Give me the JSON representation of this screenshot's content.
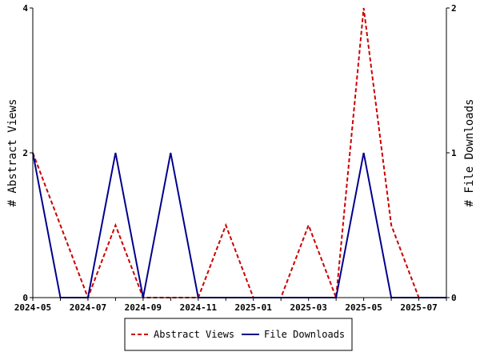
{
  "chart_data": {
    "type": "line",
    "x": [
      "2024-05",
      "2024-06",
      "2024-07",
      "2024-08",
      "2024-09",
      "2024-10",
      "2024-11",
      "2024-12",
      "2025-01",
      "2025-02",
      "2025-03",
      "2025-04",
      "2025-05",
      "2025-06",
      "2025-07",
      "2025-08"
    ],
    "x_tick_labels": [
      "2024-05",
      "2024-07",
      "2024-09",
      "2024-11",
      "2025-01",
      "2025-03",
      "2025-05",
      "2025-07"
    ],
    "series": [
      {
        "name": "Abstract Views",
        "axis": "left",
        "color": "#cc0000",
        "dash": "dashed",
        "values": [
          2,
          1,
          0,
          1,
          0,
          0,
          0,
          1,
          0,
          0,
          1,
          0,
          4,
          1,
          0,
          0
        ]
      },
      {
        "name": "File Downloads",
        "axis": "right",
        "color": "#00008b",
        "dash": "solid",
        "values": [
          1,
          0,
          0,
          1,
          0,
          1,
          0,
          0,
          0,
          0,
          0,
          0,
          1,
          0,
          0,
          0
        ]
      }
    ],
    "ylabel": "# Abstract Views",
    "ylabel_right": "# File Downloads",
    "ylim": [
      0,
      4
    ],
    "ylim_right": [
      0,
      2
    ],
    "yticks": [
      "0",
      "2",
      "4"
    ],
    "yticks_right": [
      "0",
      "1",
      "2"
    ],
    "grid": false,
    "legend_position": "bottom"
  }
}
